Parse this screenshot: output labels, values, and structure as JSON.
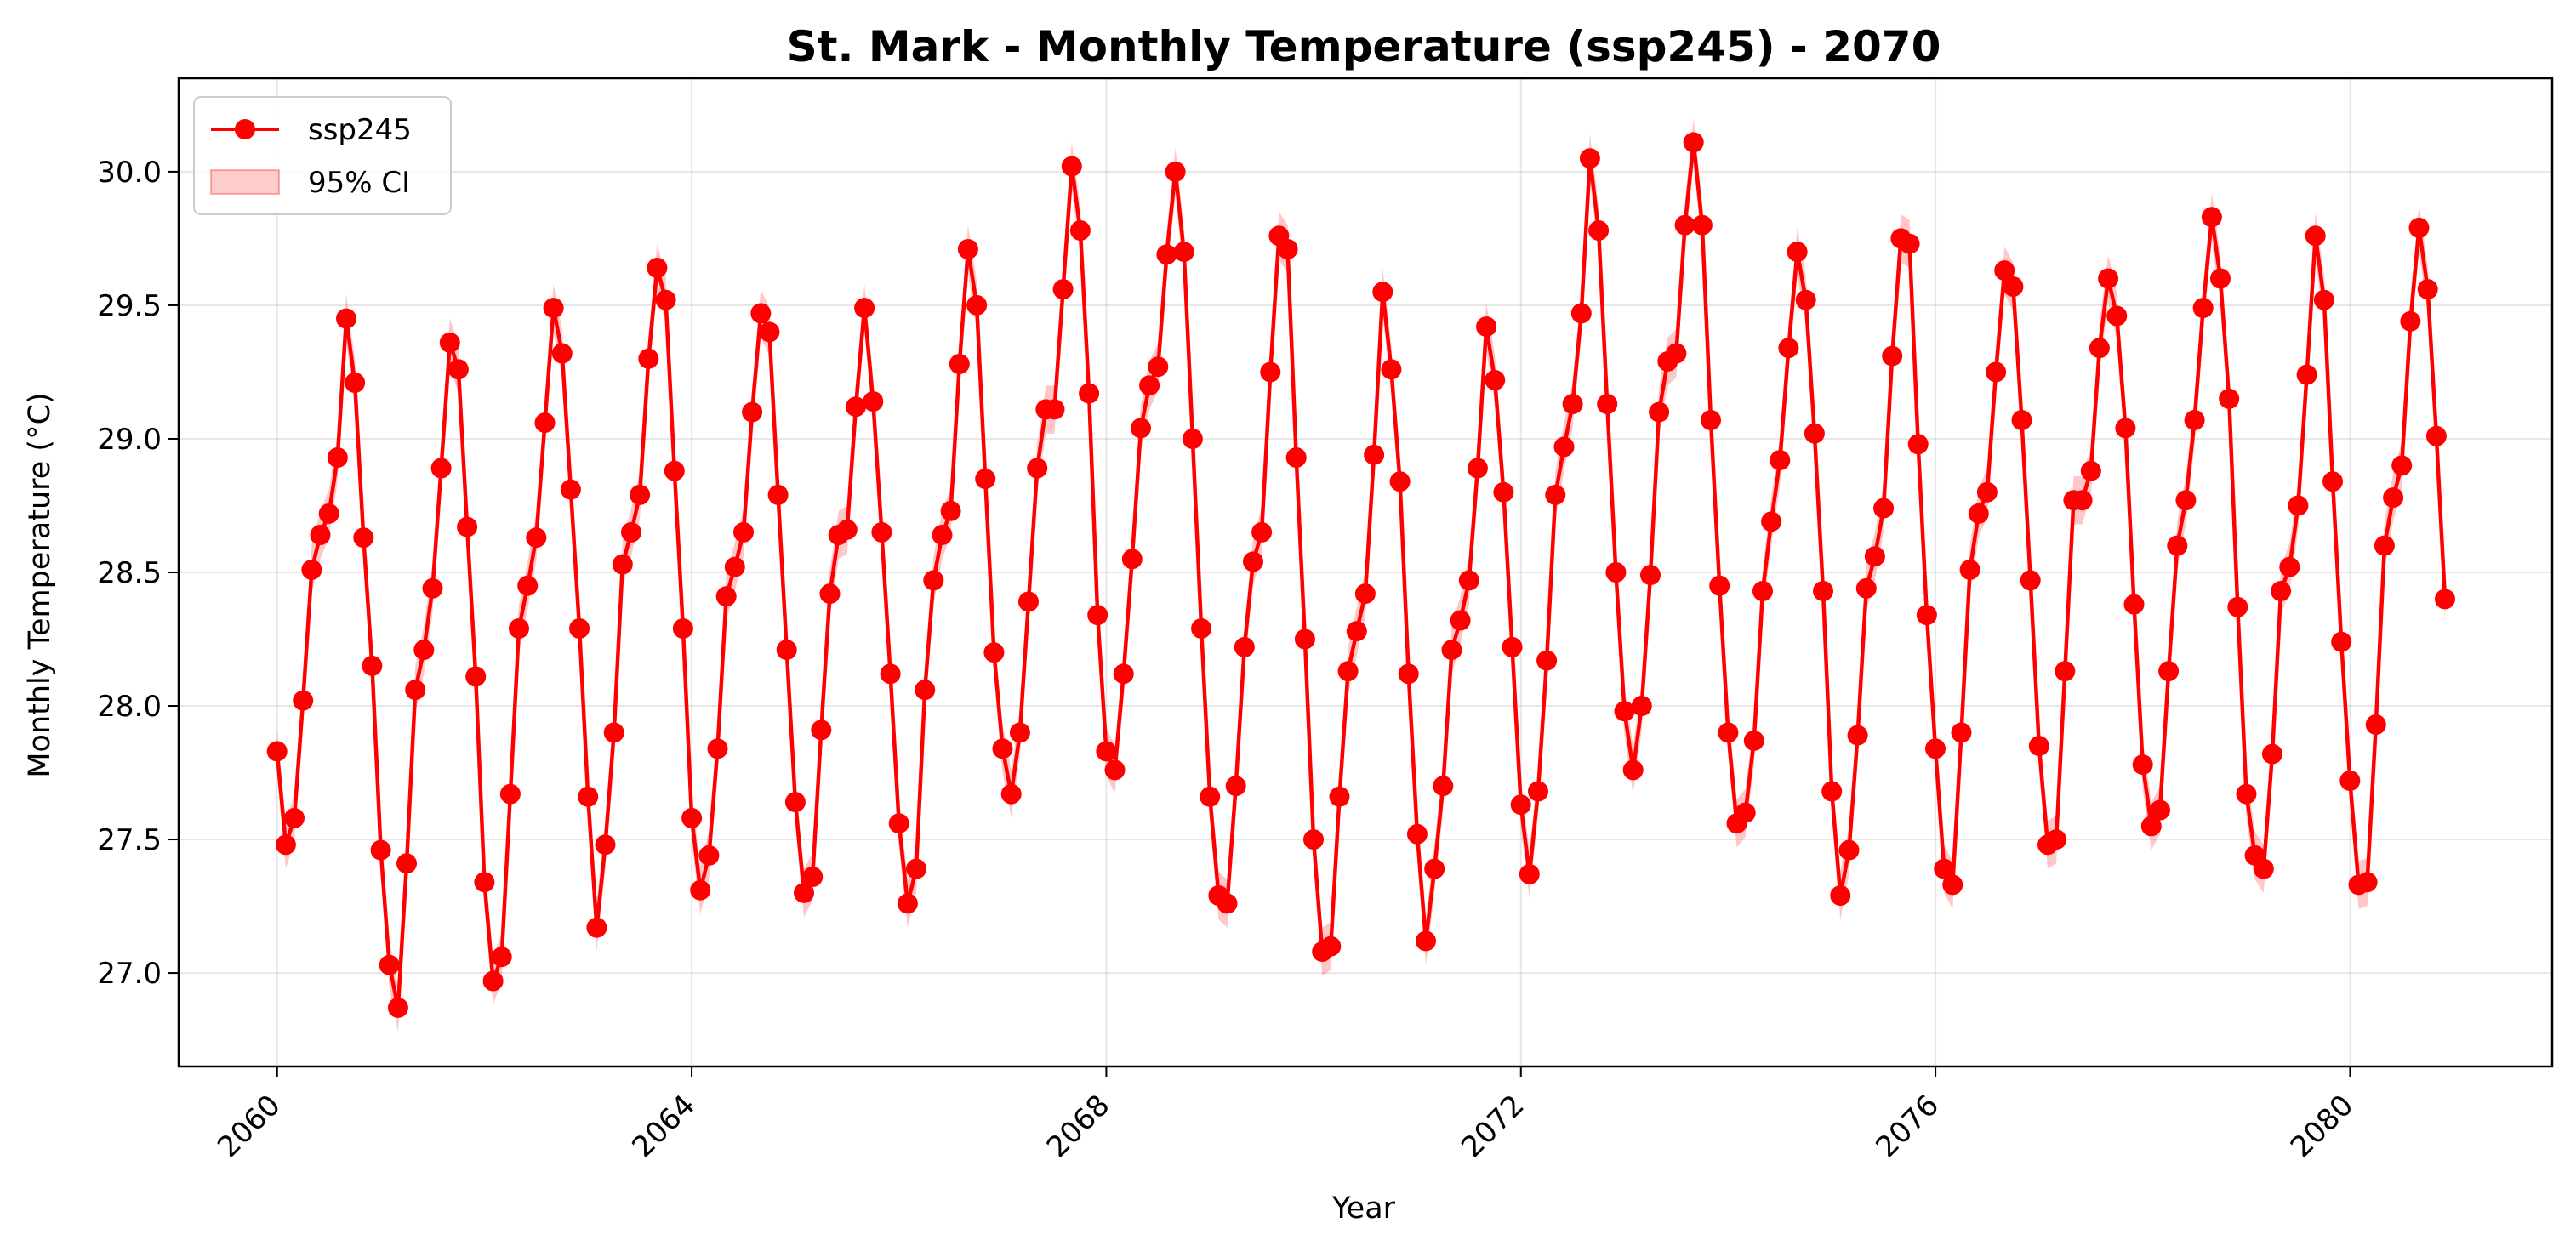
{
  "chart_data": {
    "type": "line",
    "title": "St. Mark - Monthly Temperature (ssp245) - 2070",
    "xlabel": "Year",
    "ylabel": "Monthly Temperature (°C)",
    "xlim": [
      2059.05,
      2081.95
    ],
    "ylim": [
      26.65,
      30.35
    ],
    "x_ticks": [
      2060,
      2064,
      2068,
      2072,
      2076,
      2080
    ],
    "x_tick_labels": [
      "2060",
      "2064",
      "2068",
      "2072",
      "2076",
      "2080"
    ],
    "y_ticks": [
      27.0,
      27.5,
      28.0,
      28.5,
      29.0,
      29.5,
      30.0
    ],
    "y_tick_labels": [
      "27.0",
      "27.5",
      "28.0",
      "28.5",
      "29.0",
      "29.5",
      "30.0"
    ],
    "grid": true,
    "legend_position": "top-left",
    "x_start": 2060,
    "x_step": 0.08333,
    "series": [
      {
        "name": "ssp245",
        "color": "#ff0000",
        "ci_label": "95% CI",
        "ci_halfwidth": 0.09,
        "values": [
          27.83,
          27.48,
          27.58,
          28.02,
          28.51,
          28.64,
          28.72,
          28.93,
          29.45,
          29.21,
          28.63,
          28.15,
          27.46,
          27.03,
          26.87,
          27.41,
          28.06,
          28.21,
          28.44,
          28.89,
          29.36,
          29.26,
          28.67,
          28.11,
          27.34,
          26.97,
          27.06,
          27.67,
          28.29,
          28.45,
          28.63,
          29.06,
          29.49,
          29.32,
          28.81,
          28.29,
          27.66,
          27.17,
          27.48,
          27.9,
          28.53,
          28.65,
          28.79,
          29.3,
          29.64,
          29.52,
          28.88,
          28.29,
          27.58,
          27.31,
          27.44,
          27.84,
          28.41,
          28.52,
          28.65,
          29.1,
          29.47,
          29.4,
          28.79,
          28.21,
          27.64,
          27.3,
          27.36,
          27.91,
          28.42,
          28.64,
          28.66,
          29.12,
          29.49,
          29.14,
          28.65,
          28.12,
          27.56,
          27.26,
          27.39,
          28.06,
          28.47,
          28.64,
          28.73,
          29.28,
          29.71,
          29.5,
          28.85,
          28.2,
          27.84,
          27.67,
          27.9,
          28.39,
          28.89,
          29.11,
          29.11,
          29.56,
          30.02,
          29.78,
          29.17,
          28.34,
          27.83,
          27.76,
          28.12,
          28.55,
          29.04,
          29.2,
          29.27,
          29.69,
          30.0,
          29.7,
          29.0,
          28.29,
          27.66,
          27.29,
          27.26,
          27.7,
          28.22,
          28.54,
          28.65,
          29.25,
          29.76,
          29.71,
          28.93,
          28.25,
          27.5,
          27.08,
          27.1,
          27.66,
          28.13,
          28.28,
          28.42,
          28.94,
          29.55,
          29.26,
          28.84,
          28.12,
          27.52,
          27.12,
          27.39,
          27.7,
          28.21,
          28.32,
          28.47,
          28.89,
          29.42,
          29.22,
          28.8,
          28.22,
          27.63,
          27.37,
          27.68,
          28.17,
          28.79,
          28.97,
          29.13,
          29.47,
          30.05,
          29.78,
          29.13,
          28.5,
          27.98,
          27.76,
          28.0,
          28.49,
          29.1,
          29.29,
          29.32,
          29.8,
          30.11,
          29.8,
          29.07,
          28.45,
          27.9,
          27.56,
          27.6,
          27.87,
          28.43,
          28.69,
          28.92,
          29.34,
          29.7,
          29.52,
          29.02,
          28.43,
          27.68,
          27.29,
          27.46,
          27.89,
          28.44,
          28.56,
          28.74,
          29.31,
          29.75,
          29.73,
          28.98,
          28.34,
          27.84,
          27.39,
          27.33,
          27.9,
          28.51,
          28.72,
          28.8,
          29.25,
          29.63,
          29.57,
          29.07,
          28.47,
          27.85,
          27.48,
          27.5,
          28.13,
          28.77,
          28.77,
          28.88,
          29.34,
          29.6,
          29.46,
          29.04,
          28.38,
          27.78,
          27.55,
          27.61,
          28.13,
          28.6,
          28.77,
          29.07,
          29.49,
          29.83,
          29.6,
          29.15,
          28.37,
          27.67,
          27.44,
          27.39,
          27.82,
          28.43,
          28.52,
          28.75,
          29.24,
          29.76,
          29.52,
          28.84,
          28.24,
          27.72,
          27.33,
          27.34,
          27.93,
          28.6,
          28.78,
          28.9,
          29.44,
          29.79,
          29.56,
          29.01,
          28.4
        ]
      }
    ]
  }
}
